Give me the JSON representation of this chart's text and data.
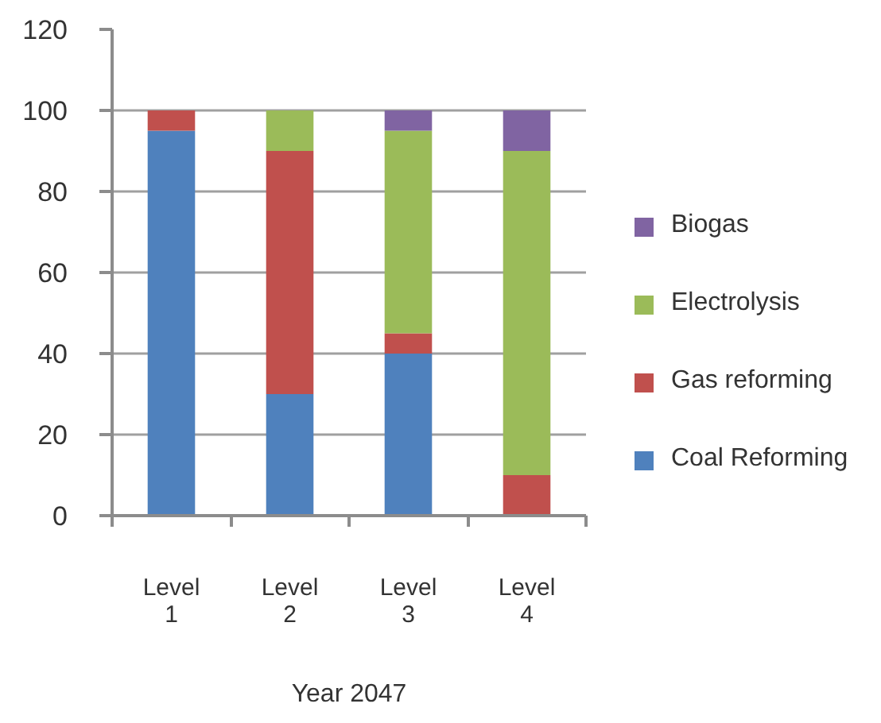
{
  "chart_data": {
    "type": "bar",
    "xlabel": "Year 2047",
    "categories": [
      "Level 1",
      "Level 2",
      "Level 3",
      "Level 4"
    ],
    "series": [
      {
        "name": "Coal Reforming",
        "color": "#4f81bd",
        "values": [
          95,
          30,
          40,
          0
        ]
      },
      {
        "name": "Gas reforming",
        "color": "#c0504d",
        "values": [
          5,
          60,
          5,
          10
        ]
      },
      {
        "name": "Electrolysis",
        "color": "#9bbb59",
        "values": [
          0,
          10,
          50,
          80
        ]
      },
      {
        "name": "Biogas",
        "color": "#8064a2",
        "values": [
          0,
          0,
          5,
          10
        ]
      }
    ],
    "stacked": true,
    "ylim": [
      0,
      120
    ],
    "yticks": [
      0,
      20,
      40,
      60,
      80,
      100,
      120
    ],
    "grid": "y",
    "legend": "right"
  }
}
